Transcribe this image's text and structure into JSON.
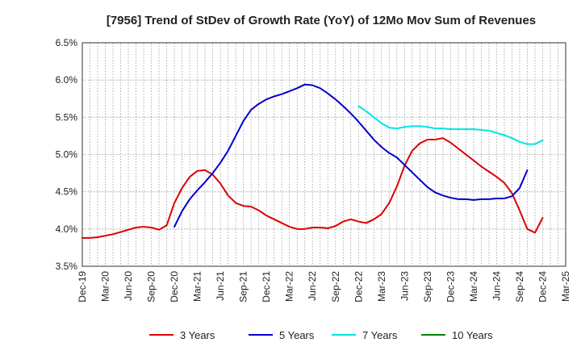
{
  "chart_data": {
    "type": "line",
    "title": "[7956]  Trend of StDev of Growth Rate (YoY) of 12Mo Mov Sum of Revenues",
    "xlabel": "",
    "ylabel": "",
    "ylim": [
      3.5,
      6.5
    ],
    "yticks": [
      "3.5%",
      "4.0%",
      "4.5%",
      "5.0%",
      "5.5%",
      "6.0%",
      "6.5%"
    ],
    "xticks": [
      "Dec-19",
      "Mar-20",
      "Jun-20",
      "Sep-20",
      "Dec-20",
      "Mar-21",
      "Jun-21",
      "Sep-21",
      "Dec-21",
      "Mar-22",
      "Jun-22",
      "Sep-22",
      "Dec-22",
      "Mar-23",
      "Jun-23",
      "Sep-23",
      "Dec-23",
      "Mar-24",
      "Jun-24",
      "Sep-24",
      "Dec-24",
      "Mar-25"
    ],
    "x_start": "Dec-19",
    "months_total": 63,
    "grid": true,
    "legend_position": "bottom",
    "series": [
      {
        "name": "3 Years",
        "color": "#dd0000",
        "start_month": 0,
        "values": [
          3.88,
          3.88,
          3.89,
          3.91,
          3.93,
          3.96,
          3.99,
          4.02,
          4.03,
          4.02,
          3.99,
          4.05,
          4.35,
          4.55,
          4.7,
          4.78,
          4.79,
          4.73,
          4.61,
          4.45,
          4.35,
          4.31,
          4.3,
          4.25,
          4.18,
          4.13,
          4.08,
          4.03,
          4.0,
          4.0,
          4.02,
          4.02,
          4.01,
          4.04,
          4.1,
          4.13,
          4.1,
          4.08,
          4.13,
          4.2,
          4.35,
          4.57,
          4.85,
          5.05,
          5.15,
          5.2,
          5.2,
          5.22,
          5.16,
          5.08,
          5.0,
          4.92,
          4.84,
          4.77,
          4.7,
          4.62,
          4.48,
          4.25,
          4.0,
          3.95,
          4.15
        ]
      },
      {
        "name": "5 Years",
        "color": "#0000cc",
        "start_month": 12,
        "values": [
          4.03,
          4.24,
          4.4,
          4.52,
          4.63,
          4.75,
          4.89,
          5.05,
          5.25,
          5.45,
          5.6,
          5.68,
          5.74,
          5.78,
          5.81,
          5.85,
          5.89,
          5.94,
          5.93,
          5.89,
          5.82,
          5.74,
          5.65,
          5.55,
          5.44,
          5.32,
          5.2,
          5.1,
          5.02,
          4.96,
          4.86,
          4.76,
          4.66,
          4.56,
          4.49,
          4.45,
          4.42,
          4.4,
          4.4,
          4.39,
          4.4,
          4.4,
          4.41,
          4.41,
          4.44,
          4.55,
          4.79
        ]
      },
      {
        "name": "7 Years",
        "color": "#00e5e5",
        "start_month": 36,
        "values": [
          5.65,
          5.58,
          5.5,
          5.42,
          5.36,
          5.35,
          5.37,
          5.38,
          5.38,
          5.37,
          5.35,
          5.35,
          5.34,
          5.34,
          5.34,
          5.34,
          5.33,
          5.32,
          5.29,
          5.26,
          5.22,
          5.17,
          5.14,
          5.14,
          5.19
        ]
      },
      {
        "name": "10 Years",
        "color": "#008800",
        "start_month": 0,
        "values": []
      }
    ]
  }
}
